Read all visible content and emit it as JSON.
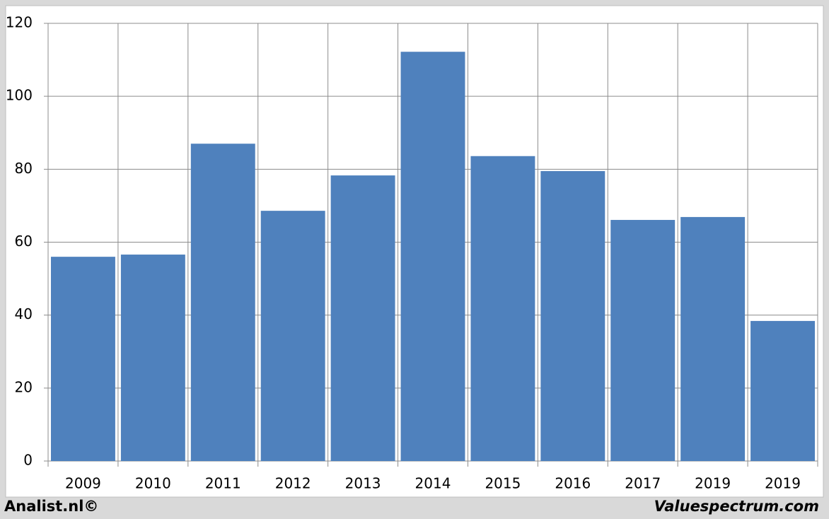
{
  "chart_data": {
    "type": "bar",
    "categories": [
      "2009",
      "2010",
      "2011",
      "2012",
      "2013",
      "2014",
      "2015",
      "2016",
      "2017",
      "2019",
      "2019"
    ],
    "values": [
      56,
      56.6,
      87,
      68.6,
      78.3,
      112.2,
      83.6,
      79.5,
      66.1,
      66.9,
      38.4
    ],
    "color": "#4f81bd",
    "ylim": [
      0,
      120
    ],
    "yticks": [
      0,
      20,
      40,
      60,
      80,
      100,
      120
    ],
    "grid": true,
    "footer_left": "Analist.nl©",
    "footer_right": "Valuespectrum.com"
  }
}
